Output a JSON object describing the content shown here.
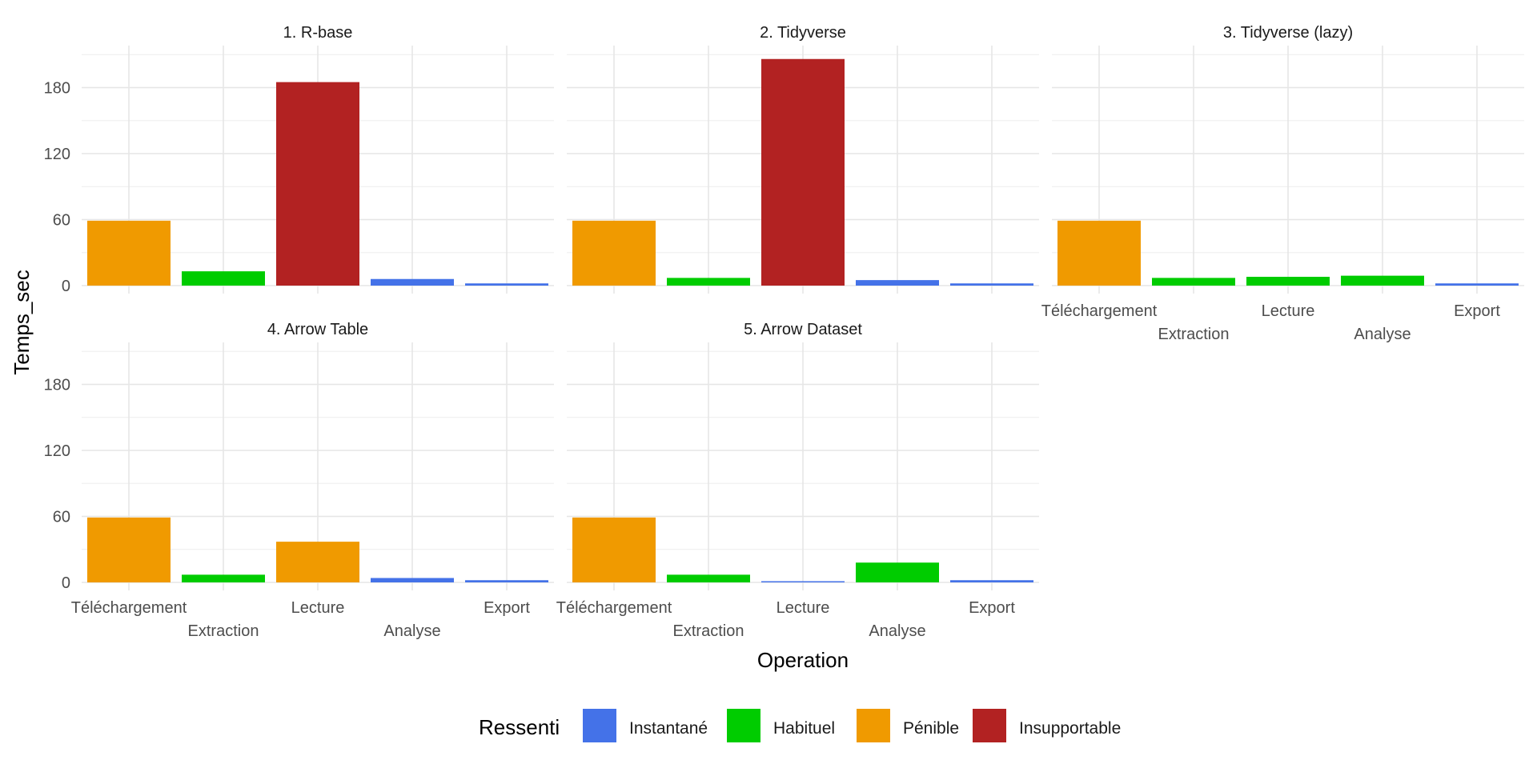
{
  "chart_data": {
    "type": "bar",
    "layout": "facet_wrap",
    "ncol": 3,
    "xlabel": "Operation",
    "ylabel": "Temps_sec",
    "ylim": [
      0,
      210
    ],
    "yticks": [
      0,
      60,
      120,
      180
    ],
    "categories": [
      "Téléchargement",
      "Extraction",
      "Lecture",
      "Analyse",
      "Export"
    ],
    "legend": {
      "title": "Ressenti",
      "position": "bottom",
      "items": [
        {
          "key": "instantane",
          "label": "Instantané",
          "color": "#4472E8"
        },
        {
          "key": "habituel",
          "label": "Habituel",
          "color": "#00CC00"
        },
        {
          "key": "penible",
          "label": "Pénible",
          "color": "#F09A00"
        },
        {
          "key": "insupportable",
          "label": "Insupportable",
          "color": "#B22222"
        }
      ]
    },
    "panels": [
      {
        "title": "1. R-base",
        "values": [
          59,
          13,
          185,
          6,
          2
        ],
        "ressenti": [
          "penible",
          "habituel",
          "insupportable",
          "instantane",
          "instantane"
        ]
      },
      {
        "title": "2. Tidyverse",
        "values": [
          59,
          7,
          206,
          5,
          2
        ],
        "ressenti": [
          "penible",
          "habituel",
          "insupportable",
          "instantane",
          "instantane"
        ]
      },
      {
        "title": "3. Tidyverse (lazy)",
        "values": [
          59,
          7,
          8,
          9,
          2
        ],
        "ressenti": [
          "penible",
          "habituel",
          "habituel",
          "habituel",
          "instantane"
        ]
      },
      {
        "title": "4. Arrow Table",
        "values": [
          59,
          7,
          37,
          4,
          2
        ],
        "ressenti": [
          "penible",
          "habituel",
          "penible",
          "instantane",
          "instantane"
        ]
      },
      {
        "title": "5. Arrow Dataset",
        "values": [
          59,
          7,
          1,
          18,
          2
        ],
        "ressenti": [
          "penible",
          "habituel",
          "instantane",
          "habituel",
          "instantane"
        ]
      }
    ]
  }
}
